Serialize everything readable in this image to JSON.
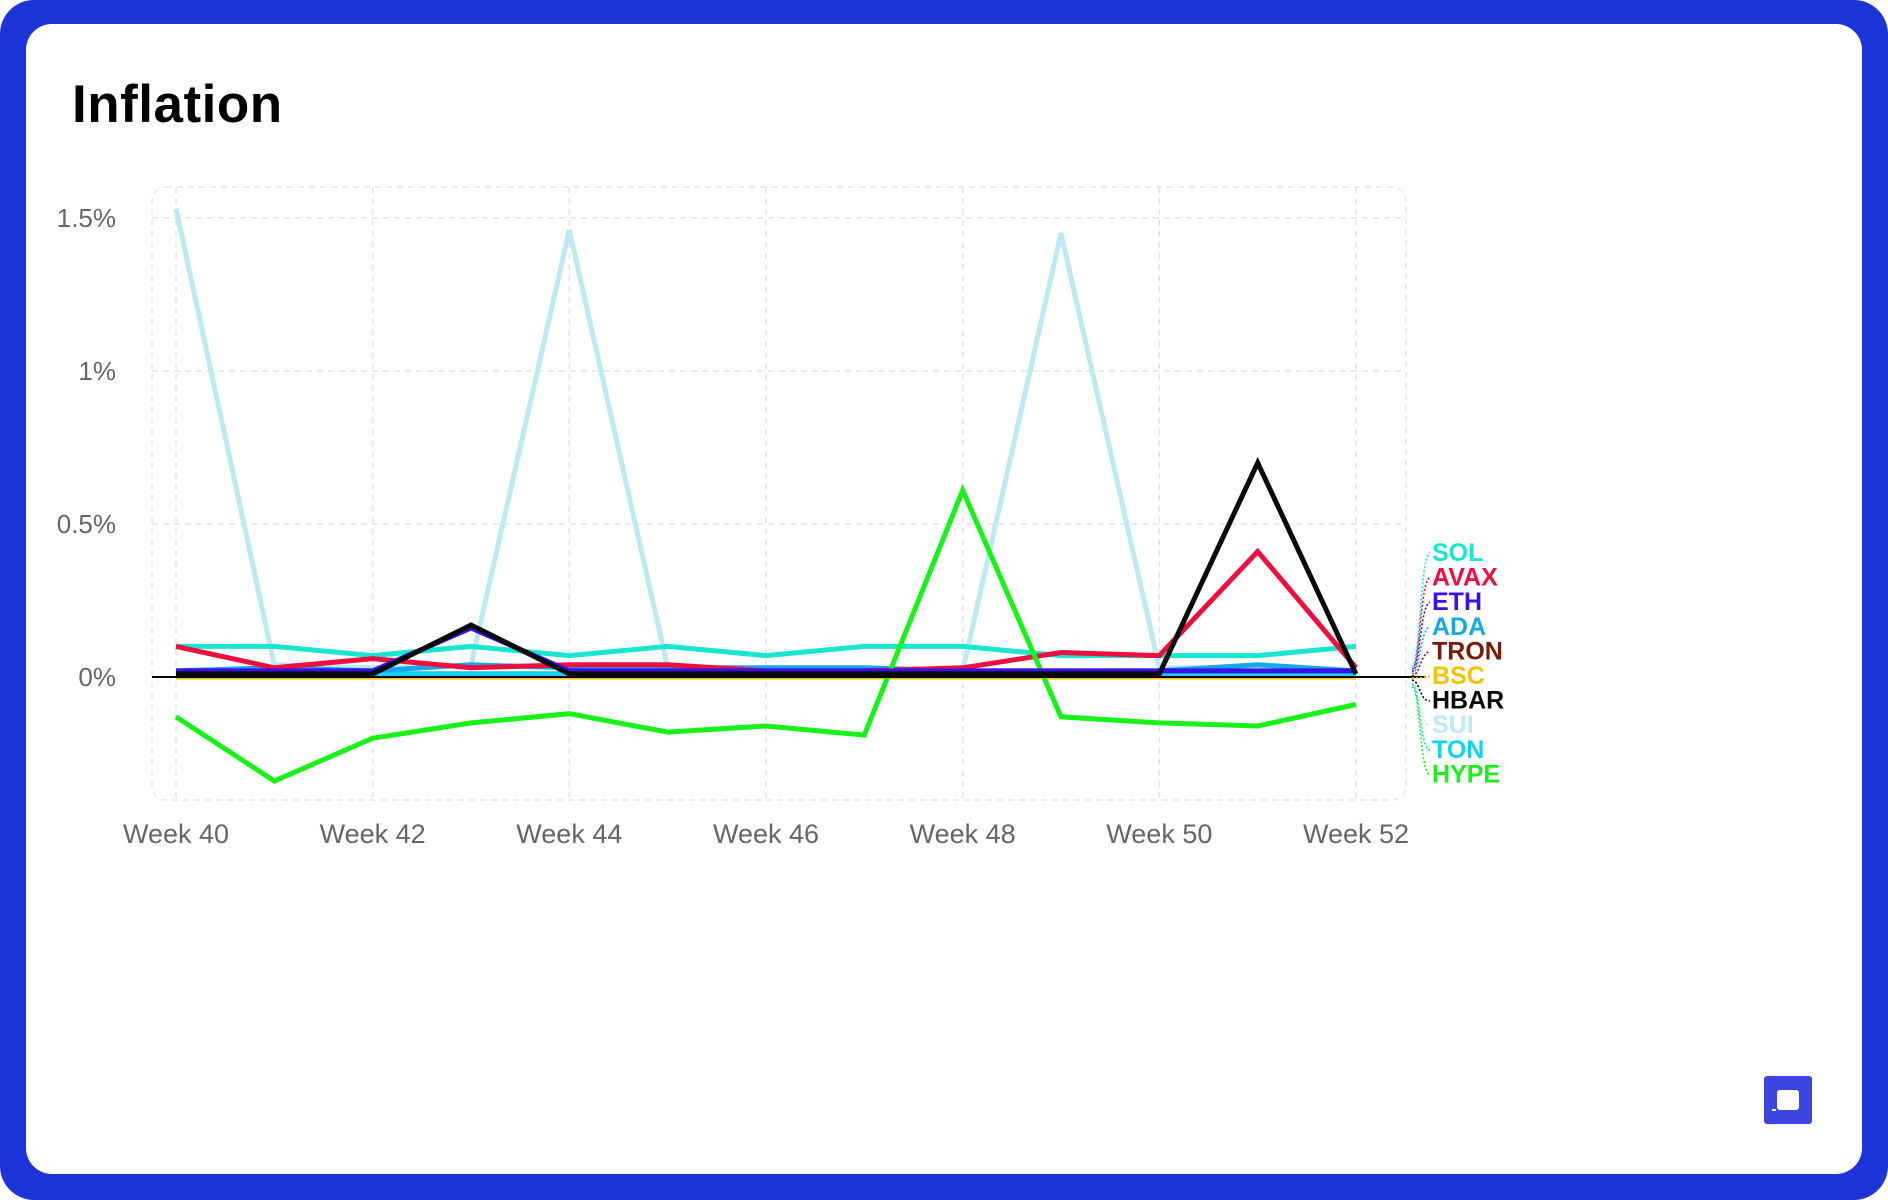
{
  "title": "Inflation",
  "chart_data": {
    "type": "line",
    "title": "Inflation",
    "xlabel": "",
    "ylabel": "",
    "x": [
      "Week 40",
      "Week 41",
      "Week 42",
      "Week 43",
      "Week 44",
      "Week 45",
      "Week 46",
      "Week 47",
      "Week 48",
      "Week 49",
      "Week 50",
      "Week 51",
      "Week 52"
    ],
    "x_tick_labels": [
      "Week 40",
      "Week 42",
      "Week 44",
      "Week 46",
      "Week 48",
      "Week 50",
      "Week 52"
    ],
    "y_ticks": [
      0,
      0.5,
      1,
      1.5
    ],
    "y_tick_labels": [
      "0%",
      "0.5%",
      "1%",
      "1.5%"
    ],
    "ylim": [
      -0.4,
      1.6
    ],
    "grid": true,
    "legend_position": "right",
    "series": [
      {
        "name": "SOL",
        "color": "#18e6cf",
        "values": [
          0.1,
          0.1,
          0.07,
          0.1,
          0.07,
          0.1,
          0.07,
          0.1,
          0.1,
          0.07,
          0.07,
          0.07,
          0.1
        ]
      },
      {
        "name": "AVAX",
        "color": "#ec0f3f",
        "values": [
          0.1,
          0.03,
          0.06,
          0.03,
          0.04,
          0.04,
          0.02,
          0.02,
          0.03,
          0.08,
          0.07,
          0.41,
          0.03
        ]
      },
      {
        "name": "ETH",
        "color": "#3b10e8",
        "values": [
          0.02,
          0.02,
          0.02,
          0.16,
          0.02,
          0.02,
          0.02,
          0.02,
          0.02,
          0.02,
          0.02,
          0.02,
          0.02
        ]
      },
      {
        "name": "ADA",
        "color": "#17a7e8",
        "values": [
          0.02,
          0.03,
          0.02,
          0.04,
          0.03,
          0.03,
          0.03,
          0.03,
          0.02,
          0.02,
          0.02,
          0.04,
          0.02
        ]
      },
      {
        "name": "TRON",
        "color": "#7a1a06",
        "values": [
          0.01,
          0.01,
          0.01,
          0.01,
          0.01,
          0.01,
          0.01,
          0.01,
          0.01,
          0.01,
          0.01,
          0.01,
          0.01
        ]
      },
      {
        "name": "BSC",
        "color": "#f2c200",
        "values": [
          0.0,
          0.0,
          0.0,
          0.0,
          0.0,
          0.0,
          0.0,
          0.0,
          0.0,
          0.0,
          0.0,
          0.0,
          0.0
        ]
      },
      {
        "name": "HBAR",
        "color": "#0a0a0a",
        "values": [
          0.01,
          0.01,
          0.01,
          0.17,
          0.01,
          0.01,
          0.01,
          0.01,
          0.01,
          0.01,
          0.01,
          0.7,
          0.01
        ]
      },
      {
        "name": "SUI",
        "color": "#bde9f2",
        "values": [
          1.53,
          0.04,
          0.03,
          0.04,
          1.46,
          0.03,
          0.02,
          0.02,
          0.02,
          1.45,
          0.03,
          0.03,
          0.02
        ]
      },
      {
        "name": "TON",
        "color": "#12d0f0",
        "values": [
          0.01,
          0.01,
          0.01,
          0.01,
          0.01,
          0.01,
          0.01,
          0.01,
          0.01,
          0.01,
          0.01,
          0.01,
          0.01
        ]
      },
      {
        "name": "HYPE",
        "color": "#18f218",
        "values": [
          -0.13,
          -0.34,
          -0.2,
          -0.15,
          -0.12,
          -0.18,
          -0.16,
          -0.19,
          0.61,
          -0.13,
          -0.15,
          -0.16,
          -0.09
        ]
      }
    ]
  }
}
